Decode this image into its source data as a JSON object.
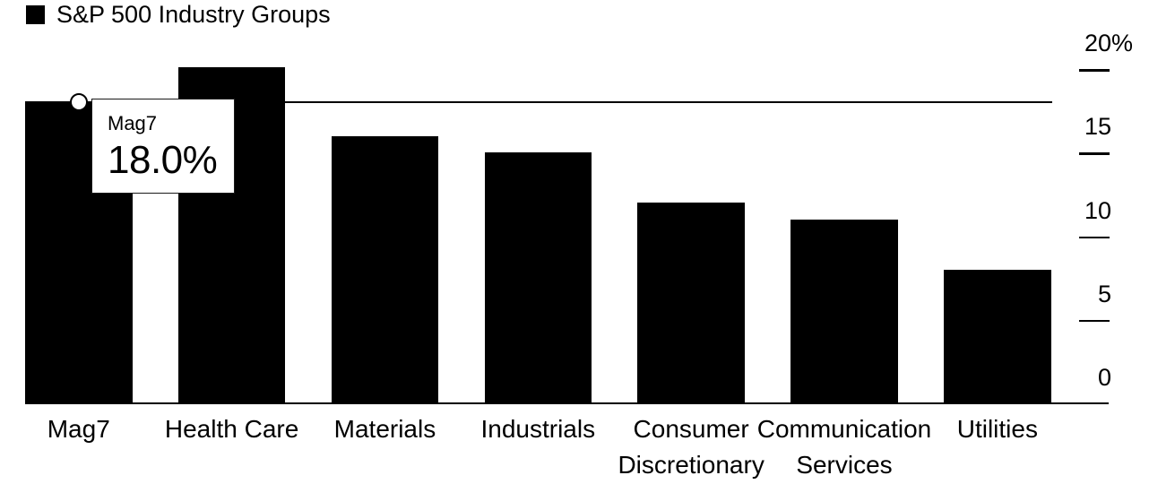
{
  "chart_data": {
    "type": "bar",
    "legend": "S&P 500 Industry Groups",
    "legend_position": "top-left",
    "categories": [
      "Mag7",
      "Health Care",
      "Materials",
      "Industrials",
      "Consumer Discretionary",
      "Communication Services",
      "Utilities"
    ],
    "values": [
      18.0,
      20.1,
      16.0,
      15.0,
      12.0,
      11.0,
      8.0
    ],
    "ylim": [
      0,
      20
    ],
    "yticks": [
      {
        "value": 20,
        "label": "20",
        "suffix": "%"
      },
      {
        "value": 15,
        "label": "15",
        "suffix": ""
      },
      {
        "value": 10,
        "label": "10",
        "suffix": ""
      },
      {
        "value": 5,
        "label": "5",
        "suffix": ""
      },
      {
        "value": 0,
        "label": "0",
        "suffix": ""
      }
    ],
    "y_axis_side": "right",
    "grid": false,
    "reference_line": {
      "value": 18.0,
      "target_category": "Mag7"
    },
    "tooltip": {
      "label": "Mag7",
      "value_label": "18.0%",
      "value": 18.0,
      "target_category": "Mag7"
    },
    "colors": {
      "bar": "#000000",
      "background": "#ffffff",
      "axis": "#000000",
      "marker_fill": "#ffffff",
      "marker_stroke": "#000000"
    }
  }
}
